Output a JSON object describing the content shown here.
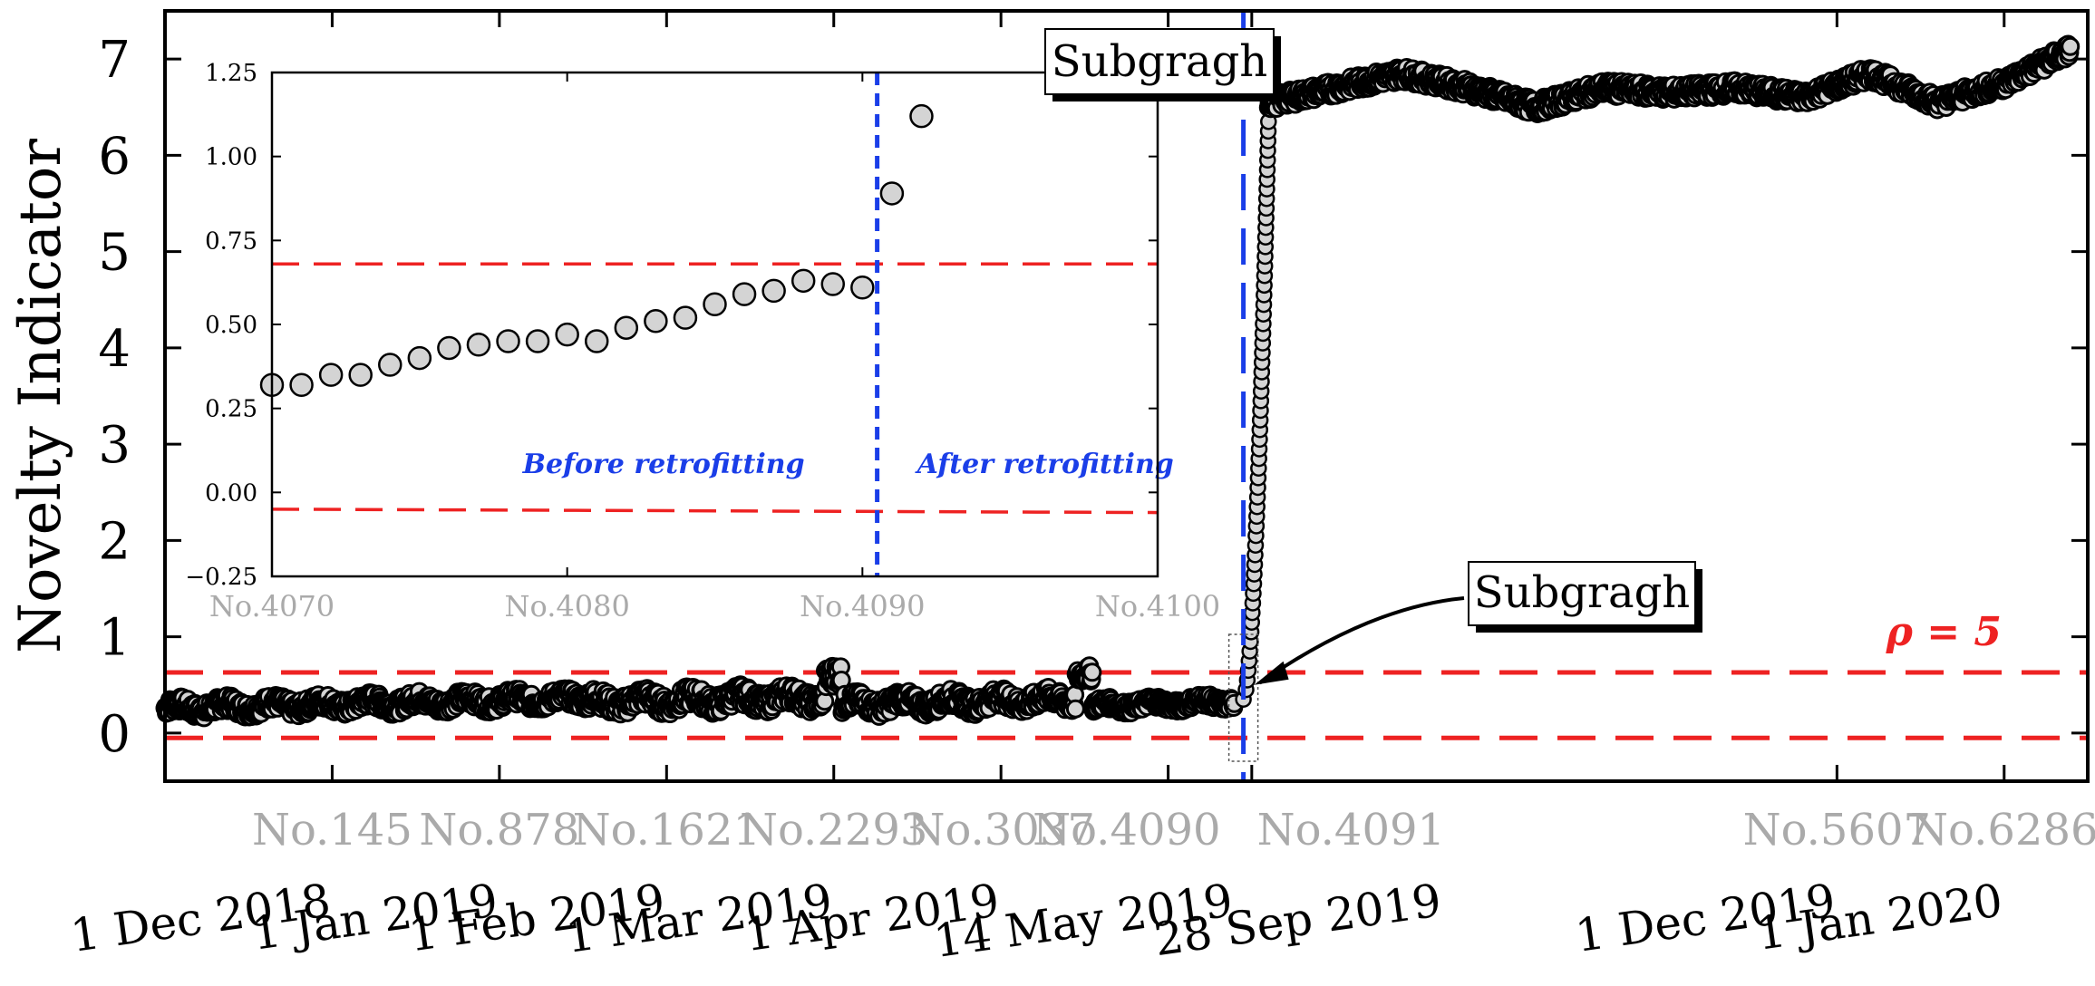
{
  "chart_data": {
    "type": "scatter",
    "ylabel": "Novelty Indicator",
    "ylim": [
      -0.5,
      7.5
    ],
    "yticks": [
      0,
      1,
      2,
      3,
      4,
      5,
      6,
      7
    ],
    "x_sample_labels": [
      "No.145",
      "No.878",
      "No.1621",
      "No.2293",
      "No.3037",
      "No.4090",
      "No.4091",
      "No.5607",
      "No.6286"
    ],
    "x_date_labels": [
      "1 Dec 2018",
      "1 Jan 2019",
      "1 Feb 2019",
      "1 Mar 2019",
      "1 Apr 2019",
      "14 May 2019",
      "28 Sep 2019",
      "1 Dec 2019",
      "1 Jan 2020"
    ],
    "tick_positions": [
      0.5,
      1.5,
      2.5,
      3.5,
      4.5,
      5.5,
      6.0,
      9.5,
      10.5
    ],
    "xlim": [
      -0.5,
      11.0
    ],
    "threshold_label": "ρ = 5",
    "threshold_upper": 0.63,
    "threshold_lower": -0.05,
    "retrofit_position": 5.95,
    "callout_label": "Subgragh",
    "series": [
      {
        "name": "before retrofitting",
        "segments": [
          {
            "x": [
              -0.5,
              2.0
            ],
            "base": 0.26,
            "amp": 0.08,
            "drift": 0.1
          },
          {
            "x": [
              2.0,
              3.45
            ],
            "base": 0.32,
            "amp": 0.1,
            "drift": 0.05
          },
          {
            "x": [
              3.45,
              3.55
            ],
            "base": 0.55,
            "amp": 0.12,
            "drift": 0.0
          },
          {
            "x": [
              3.55,
              4.95
            ],
            "base": 0.3,
            "amp": 0.09,
            "drift": 0.05
          },
          {
            "x": [
              4.95,
              5.05
            ],
            "base": 0.58,
            "amp": 0.08,
            "drift": 0.0
          },
          {
            "x": [
              5.05,
              5.9
            ],
            "base": 0.28,
            "amp": 0.06,
            "drift": 0.05
          }
        ]
      },
      {
        "name": "after retrofitting",
        "transition": {
          "x": [
            5.95,
            6.1
          ],
          "from": 0.35,
          "to": 6.35
        },
        "plateau": [
          {
            "x": 6.1,
            "y": 6.55
          },
          {
            "x": 6.5,
            "y": 6.7
          },
          {
            "x": 6.9,
            "y": 6.85
          },
          {
            "x": 7.3,
            "y": 6.7
          },
          {
            "x": 7.7,
            "y": 6.5
          },
          {
            "x": 8.1,
            "y": 6.7
          },
          {
            "x": 8.5,
            "y": 6.65
          },
          {
            "x": 8.9,
            "y": 6.7
          },
          {
            "x": 9.3,
            "y": 6.6
          },
          {
            "x": 9.7,
            "y": 6.85
          },
          {
            "x": 10.1,
            "y": 6.55
          },
          {
            "x": 10.5,
            "y": 6.75
          },
          {
            "x": 10.9,
            "y": 7.1
          }
        ]
      }
    ],
    "inset": {
      "title": "Subgragh",
      "type": "scatter",
      "xlim": [
        4070,
        4100
      ],
      "ylim": [
        -0.25,
        1.25
      ],
      "yticks": [
        -0.25,
        0.0,
        0.25,
        0.5,
        0.75,
        1.0,
        1.25
      ],
      "ytick_labels": [
        "−0.25",
        "0.00",
        "0.25",
        "0.50",
        "0.75",
        "1.00",
        "1.25"
      ],
      "xticks": [
        4070,
        4080,
        4090,
        4100
      ],
      "xtick_labels": [
        "No.4070",
        "No.4080",
        "No.4090",
        "No.4100"
      ],
      "x": [
        4070,
        4071,
        4072,
        4073,
        4074,
        4075,
        4076,
        4077,
        4078,
        4079,
        4080,
        4081,
        4082,
        4083,
        4084,
        4085,
        4086,
        4087,
        4088,
        4089,
        4090,
        4091,
        4092
      ],
      "y": [
        0.32,
        0.32,
        0.35,
        0.35,
        0.38,
        0.4,
        0.43,
        0.44,
        0.45,
        0.45,
        0.47,
        0.45,
        0.49,
        0.51,
        0.52,
        0.56,
        0.59,
        0.6,
        0.63,
        0.62,
        0.61,
        0.89,
        1.12
      ],
      "threshold_upper": 0.68,
      "threshold_lower": -0.05,
      "threshold_lower_right": -0.06,
      "divider_x": 4090.5,
      "before_label": "Before retrofitting",
      "after_label": "After retrofitting"
    }
  },
  "colors": {
    "threshold": "#ee2222",
    "retrofit_line": "#1a3ee8",
    "marker_fill": "#d4d4d4",
    "marker_stroke": "#000000",
    "tick_text": "#aaaaaa",
    "annotation_text": "#1a3ee8"
  }
}
